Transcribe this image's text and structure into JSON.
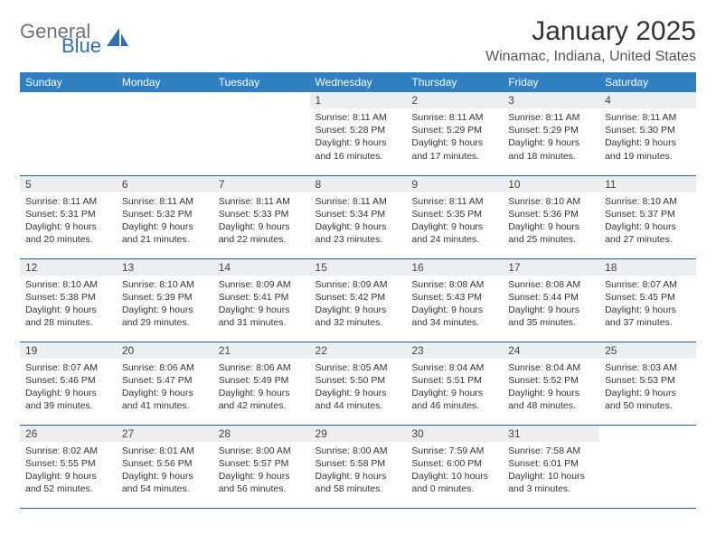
{
  "brand": {
    "word1": "General",
    "word2": "Blue"
  },
  "title": "January 2025",
  "location": "Winamac, Indiana, United States",
  "colors": {
    "header_bg": "#2f7fc1",
    "header_text": "#ffffff",
    "daynum_bg": "#eceff2",
    "border": "#2a5d8a",
    "brand_gray": "#6b7280",
    "brand_blue": "#2f6fb0"
  },
  "day_names": [
    "Sunday",
    "Monday",
    "Tuesday",
    "Wednesday",
    "Thursday",
    "Friday",
    "Saturday"
  ],
  "weeks": [
    [
      null,
      null,
      null,
      {
        "n": "1",
        "sr": "8:11 AM",
        "ss": "5:28 PM",
        "dl": "9 hours and 16 minutes."
      },
      {
        "n": "2",
        "sr": "8:11 AM",
        "ss": "5:29 PM",
        "dl": "9 hours and 17 minutes."
      },
      {
        "n": "3",
        "sr": "8:11 AM",
        "ss": "5:29 PM",
        "dl": "9 hours and 18 minutes."
      },
      {
        "n": "4",
        "sr": "8:11 AM",
        "ss": "5:30 PM",
        "dl": "9 hours and 19 minutes."
      }
    ],
    [
      {
        "n": "5",
        "sr": "8:11 AM",
        "ss": "5:31 PM",
        "dl": "9 hours and 20 minutes."
      },
      {
        "n": "6",
        "sr": "8:11 AM",
        "ss": "5:32 PM",
        "dl": "9 hours and 21 minutes."
      },
      {
        "n": "7",
        "sr": "8:11 AM",
        "ss": "5:33 PM",
        "dl": "9 hours and 22 minutes."
      },
      {
        "n": "8",
        "sr": "8:11 AM",
        "ss": "5:34 PM",
        "dl": "9 hours and 23 minutes."
      },
      {
        "n": "9",
        "sr": "8:11 AM",
        "ss": "5:35 PM",
        "dl": "9 hours and 24 minutes."
      },
      {
        "n": "10",
        "sr": "8:10 AM",
        "ss": "5:36 PM",
        "dl": "9 hours and 25 minutes."
      },
      {
        "n": "11",
        "sr": "8:10 AM",
        "ss": "5:37 PM",
        "dl": "9 hours and 27 minutes."
      }
    ],
    [
      {
        "n": "12",
        "sr": "8:10 AM",
        "ss": "5:38 PM",
        "dl": "9 hours and 28 minutes."
      },
      {
        "n": "13",
        "sr": "8:10 AM",
        "ss": "5:39 PM",
        "dl": "9 hours and 29 minutes."
      },
      {
        "n": "14",
        "sr": "8:09 AM",
        "ss": "5:41 PM",
        "dl": "9 hours and 31 minutes."
      },
      {
        "n": "15",
        "sr": "8:09 AM",
        "ss": "5:42 PM",
        "dl": "9 hours and 32 minutes."
      },
      {
        "n": "16",
        "sr": "8:08 AM",
        "ss": "5:43 PM",
        "dl": "9 hours and 34 minutes."
      },
      {
        "n": "17",
        "sr": "8:08 AM",
        "ss": "5:44 PM",
        "dl": "9 hours and 35 minutes."
      },
      {
        "n": "18",
        "sr": "8:07 AM",
        "ss": "5:45 PM",
        "dl": "9 hours and 37 minutes."
      }
    ],
    [
      {
        "n": "19",
        "sr": "8:07 AM",
        "ss": "5:46 PM",
        "dl": "9 hours and 39 minutes."
      },
      {
        "n": "20",
        "sr": "8:06 AM",
        "ss": "5:47 PM",
        "dl": "9 hours and 41 minutes."
      },
      {
        "n": "21",
        "sr": "8:06 AM",
        "ss": "5:49 PM",
        "dl": "9 hours and 42 minutes."
      },
      {
        "n": "22",
        "sr": "8:05 AM",
        "ss": "5:50 PM",
        "dl": "9 hours and 44 minutes."
      },
      {
        "n": "23",
        "sr": "8:04 AM",
        "ss": "5:51 PM",
        "dl": "9 hours and 46 minutes."
      },
      {
        "n": "24",
        "sr": "8:04 AM",
        "ss": "5:52 PM",
        "dl": "9 hours and 48 minutes."
      },
      {
        "n": "25",
        "sr": "8:03 AM",
        "ss": "5:53 PM",
        "dl": "9 hours and 50 minutes."
      }
    ],
    [
      {
        "n": "26",
        "sr": "8:02 AM",
        "ss": "5:55 PM",
        "dl": "9 hours and 52 minutes."
      },
      {
        "n": "27",
        "sr": "8:01 AM",
        "ss": "5:56 PM",
        "dl": "9 hours and 54 minutes."
      },
      {
        "n": "28",
        "sr": "8:00 AM",
        "ss": "5:57 PM",
        "dl": "9 hours and 56 minutes."
      },
      {
        "n": "29",
        "sr": "8:00 AM",
        "ss": "5:58 PM",
        "dl": "9 hours and 58 minutes."
      },
      {
        "n": "30",
        "sr": "7:59 AM",
        "ss": "6:00 PM",
        "dl": "10 hours and 0 minutes."
      },
      {
        "n": "31",
        "sr": "7:58 AM",
        "ss": "6:01 PM",
        "dl": "10 hours and 3 minutes."
      },
      null
    ]
  ],
  "labels": {
    "sunrise": "Sunrise:",
    "sunset": "Sunset:",
    "daylight": "Daylight:"
  }
}
